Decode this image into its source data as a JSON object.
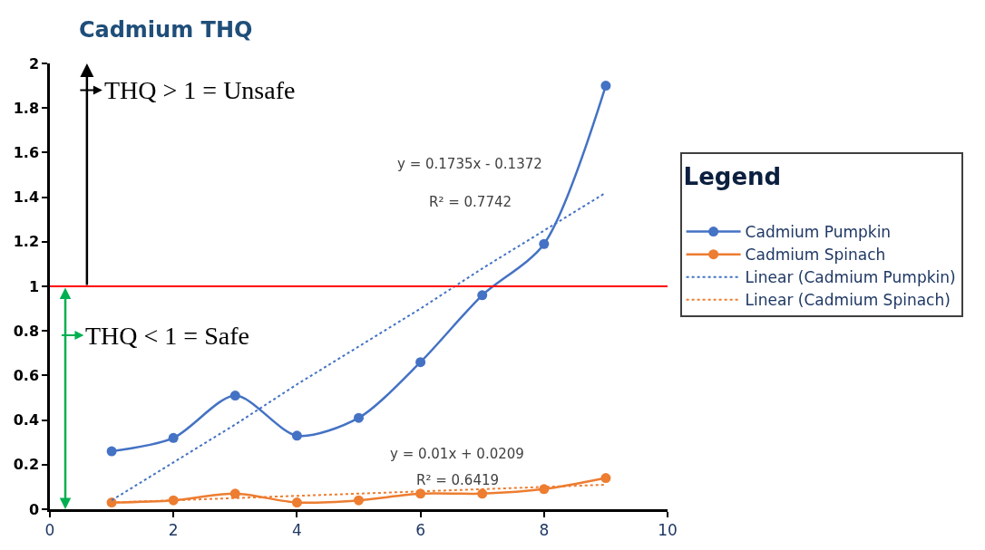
{
  "chart_data": {
    "type": "line",
    "title": "Cadmium THQ",
    "legend_title": "Legend",
    "legend": "right",
    "marker": "circle",
    "xlim": [
      0,
      10
    ],
    "xticks": [
      0,
      2,
      4,
      6,
      8,
      10
    ],
    "ylim": [
      0,
      2
    ],
    "yticks": [
      0,
      0.2,
      0.4,
      0.6,
      0.8,
      1,
      1.2,
      1.4,
      1.6,
      1.8,
      2
    ],
    "x": [
      1,
      2,
      3,
      4,
      5,
      6,
      7,
      8,
      9
    ],
    "series": [
      {
        "name": "Cadmium Pumpkin",
        "color": "#4472c4",
        "values": [
          0.26,
          0.32,
          0.51,
          0.33,
          0.41,
          0.66,
          0.96,
          1.19,
          1.9
        ]
      },
      {
        "name": "Cadmium Spinach",
        "color": "#ed7d31",
        "values": [
          0.03,
          0.04,
          0.07,
          0.03,
          0.04,
          0.07,
          0.07,
          0.09,
          0.14
        ]
      },
      {
        "name": "Linear (Cadmium Pumpkin)",
        "color": "#4472c4",
        "type": "line",
        "marker": "none",
        "line_style": "dotted",
        "values": [
          0.04,
          0.21,
          0.38,
          0.56,
          0.73,
          0.9,
          1.08,
          1.25,
          1.42
        ]
      },
      {
        "name": "Linear (Cadmium Spinach)",
        "color": "#ed7d31",
        "type": "line",
        "marker": "none",
        "line_style": "dotted",
        "values": [
          0.03,
          0.04,
          0.05,
          0.06,
          0.07,
          0.08,
          0.09,
          0.1,
          0.11
        ]
      }
    ],
    "ref_lines": [
      {
        "axis": "y",
        "value": 1,
        "color": "#ff0000"
      }
    ],
    "annotations": [
      "THQ > 1 = Unsafe",
      "THQ < 1 = Safe",
      "y = 0.1735x - 0.1372",
      "R² = 0.7742",
      "y = 0.01x + 0.0209",
      "R² = 0.6419"
    ]
  }
}
